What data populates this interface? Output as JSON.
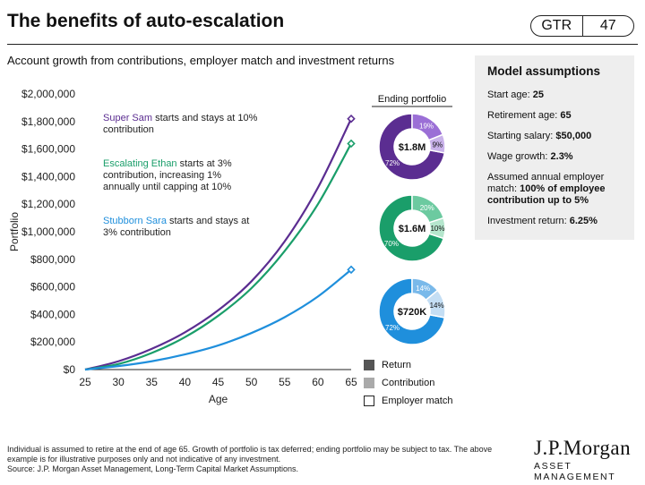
{
  "header": {
    "title": "The benefits of auto-escalation",
    "badge_left": "GTR",
    "badge_right": "47"
  },
  "subtitle": "Account growth from contributions, employer match and investment returns",
  "assumptions": {
    "title": "Model assumptions",
    "rows": [
      {
        "label": "Start age: ",
        "value": "25"
      },
      {
        "label": "Retirement age: ",
        "value": "65"
      },
      {
        "label": "Starting salary: ",
        "value": "$50,000"
      },
      {
        "label": "Wage growth: ",
        "value": "2.3%"
      },
      {
        "label": "Assumed annual employer match: ",
        "value": "100% of employee contribution up to 5%"
      },
      {
        "label": "Investment return: ",
        "value": "6.25%"
      }
    ]
  },
  "annotations": [
    {
      "name": "Super Sam",
      "text": " starts and stays at 10% contribution",
      "color": "#5b2d91"
    },
    {
      "name": "Escalating Ethan",
      "text": " starts at 3% contribution, increasing 1% annually until capping at 10%",
      "color": "#1a9e6a"
    },
    {
      "name": "Stubborn Sara",
      "text": " starts and stays at 3% contribution",
      "color": "#1f8fdc"
    }
  ],
  "legend": [
    {
      "label": "Return",
      "color": "#555555",
      "border": "#555555"
    },
    {
      "label": "Contribution",
      "color": "#aaaaaa",
      "border": "#aaaaaa"
    },
    {
      "label": "Employer match",
      "color": "#ffffff",
      "border": "#222222"
    }
  ],
  "footnote": "Individual is assumed to retire at the end of age 65. Growth of portfolio is tax deferred; ending portfolio may be subject to tax. The above example is for illustrative purposes only and not indicative of any investment.",
  "source": "Source: J.P. Morgan Asset Management, Long-Term Capital Market Assumptions.",
  "logo": {
    "line1": "J.P.Morgan",
    "line2": "ASSET MANAGEMENT"
  },
  "chart_data": [
    {
      "type": "line",
      "xlabel": "Age",
      "ylabel": "Portfolio",
      "x_ticks": [
        25,
        30,
        35,
        40,
        45,
        50,
        55,
        60,
        65
      ],
      "y_ticks": [
        0,
        200000,
        400000,
        600000,
        800000,
        1000000,
        1200000,
        1400000,
        1600000,
        1800000,
        2000000
      ],
      "y_tick_labels": [
        "$0",
        "$200,000",
        "$400,000",
        "$600,000",
        "$800,000",
        "$1,000,000",
        "$1,200,000",
        "$1,400,000",
        "$1,600,000",
        "$1,800,000",
        "$2,000,000"
      ],
      "xlim": [
        25,
        65
      ],
      "ylim": [
        0,
        2000000
      ],
      "grid": false,
      "series": [
        {
          "name": "Super Sam",
          "color": "#5b2d91",
          "x": [
            25,
            30,
            35,
            40,
            45,
            50,
            55,
            60,
            65
          ],
          "y": [
            0,
            60000,
            150000,
            270000,
            430000,
            640000,
            930000,
            1320000,
            1820000
          ]
        },
        {
          "name": "Escalating Ethan",
          "color": "#1a9e6a",
          "x": [
            25,
            30,
            35,
            40,
            45,
            50,
            55,
            60,
            65
          ],
          "y": [
            0,
            40000,
            120000,
            235000,
            390000,
            590000,
            860000,
            1200000,
            1640000
          ]
        },
        {
          "name": "Stubborn Sara",
          "color": "#1f8fdc",
          "x": [
            25,
            30,
            35,
            40,
            45,
            50,
            55,
            60,
            65
          ],
          "y": [
            0,
            25000,
            60000,
            110000,
            175000,
            265000,
            380000,
            530000,
            725000
          ]
        }
      ]
    },
    {
      "type": "pie",
      "title": "Ending portfolio",
      "donuts": [
        {
          "center_label": "$1.8M",
          "base_color": "#5b2d91",
          "slices": [
            {
              "label": "Return",
              "value": 72,
              "color": "#5b2d91"
            },
            {
              "label": "Contribution",
              "value": 19,
              "color": "#9b6fd6"
            },
            {
              "label": "Employer match",
              "value": 9,
              "color": "#c9b2ea"
            }
          ]
        },
        {
          "center_label": "$1.6M",
          "base_color": "#1a9e6a",
          "slices": [
            {
              "label": "Return",
              "value": 70,
              "color": "#1a9e6a"
            },
            {
              "label": "Contribution",
              "value": 20,
              "color": "#6ccaa0"
            },
            {
              "label": "Employer match",
              "value": 10,
              "color": "#b5e6cd"
            }
          ]
        },
        {
          "center_label": "$720K",
          "base_color": "#1f8fdc",
          "slices": [
            {
              "label": "Return",
              "value": 72,
              "color": "#1f8fdc"
            },
            {
              "label": "Contribution",
              "value": 14,
              "color": "#79b9ea"
            },
            {
              "label": "Employer match",
              "value": 14,
              "color": "#c4def4"
            }
          ]
        }
      ]
    }
  ]
}
